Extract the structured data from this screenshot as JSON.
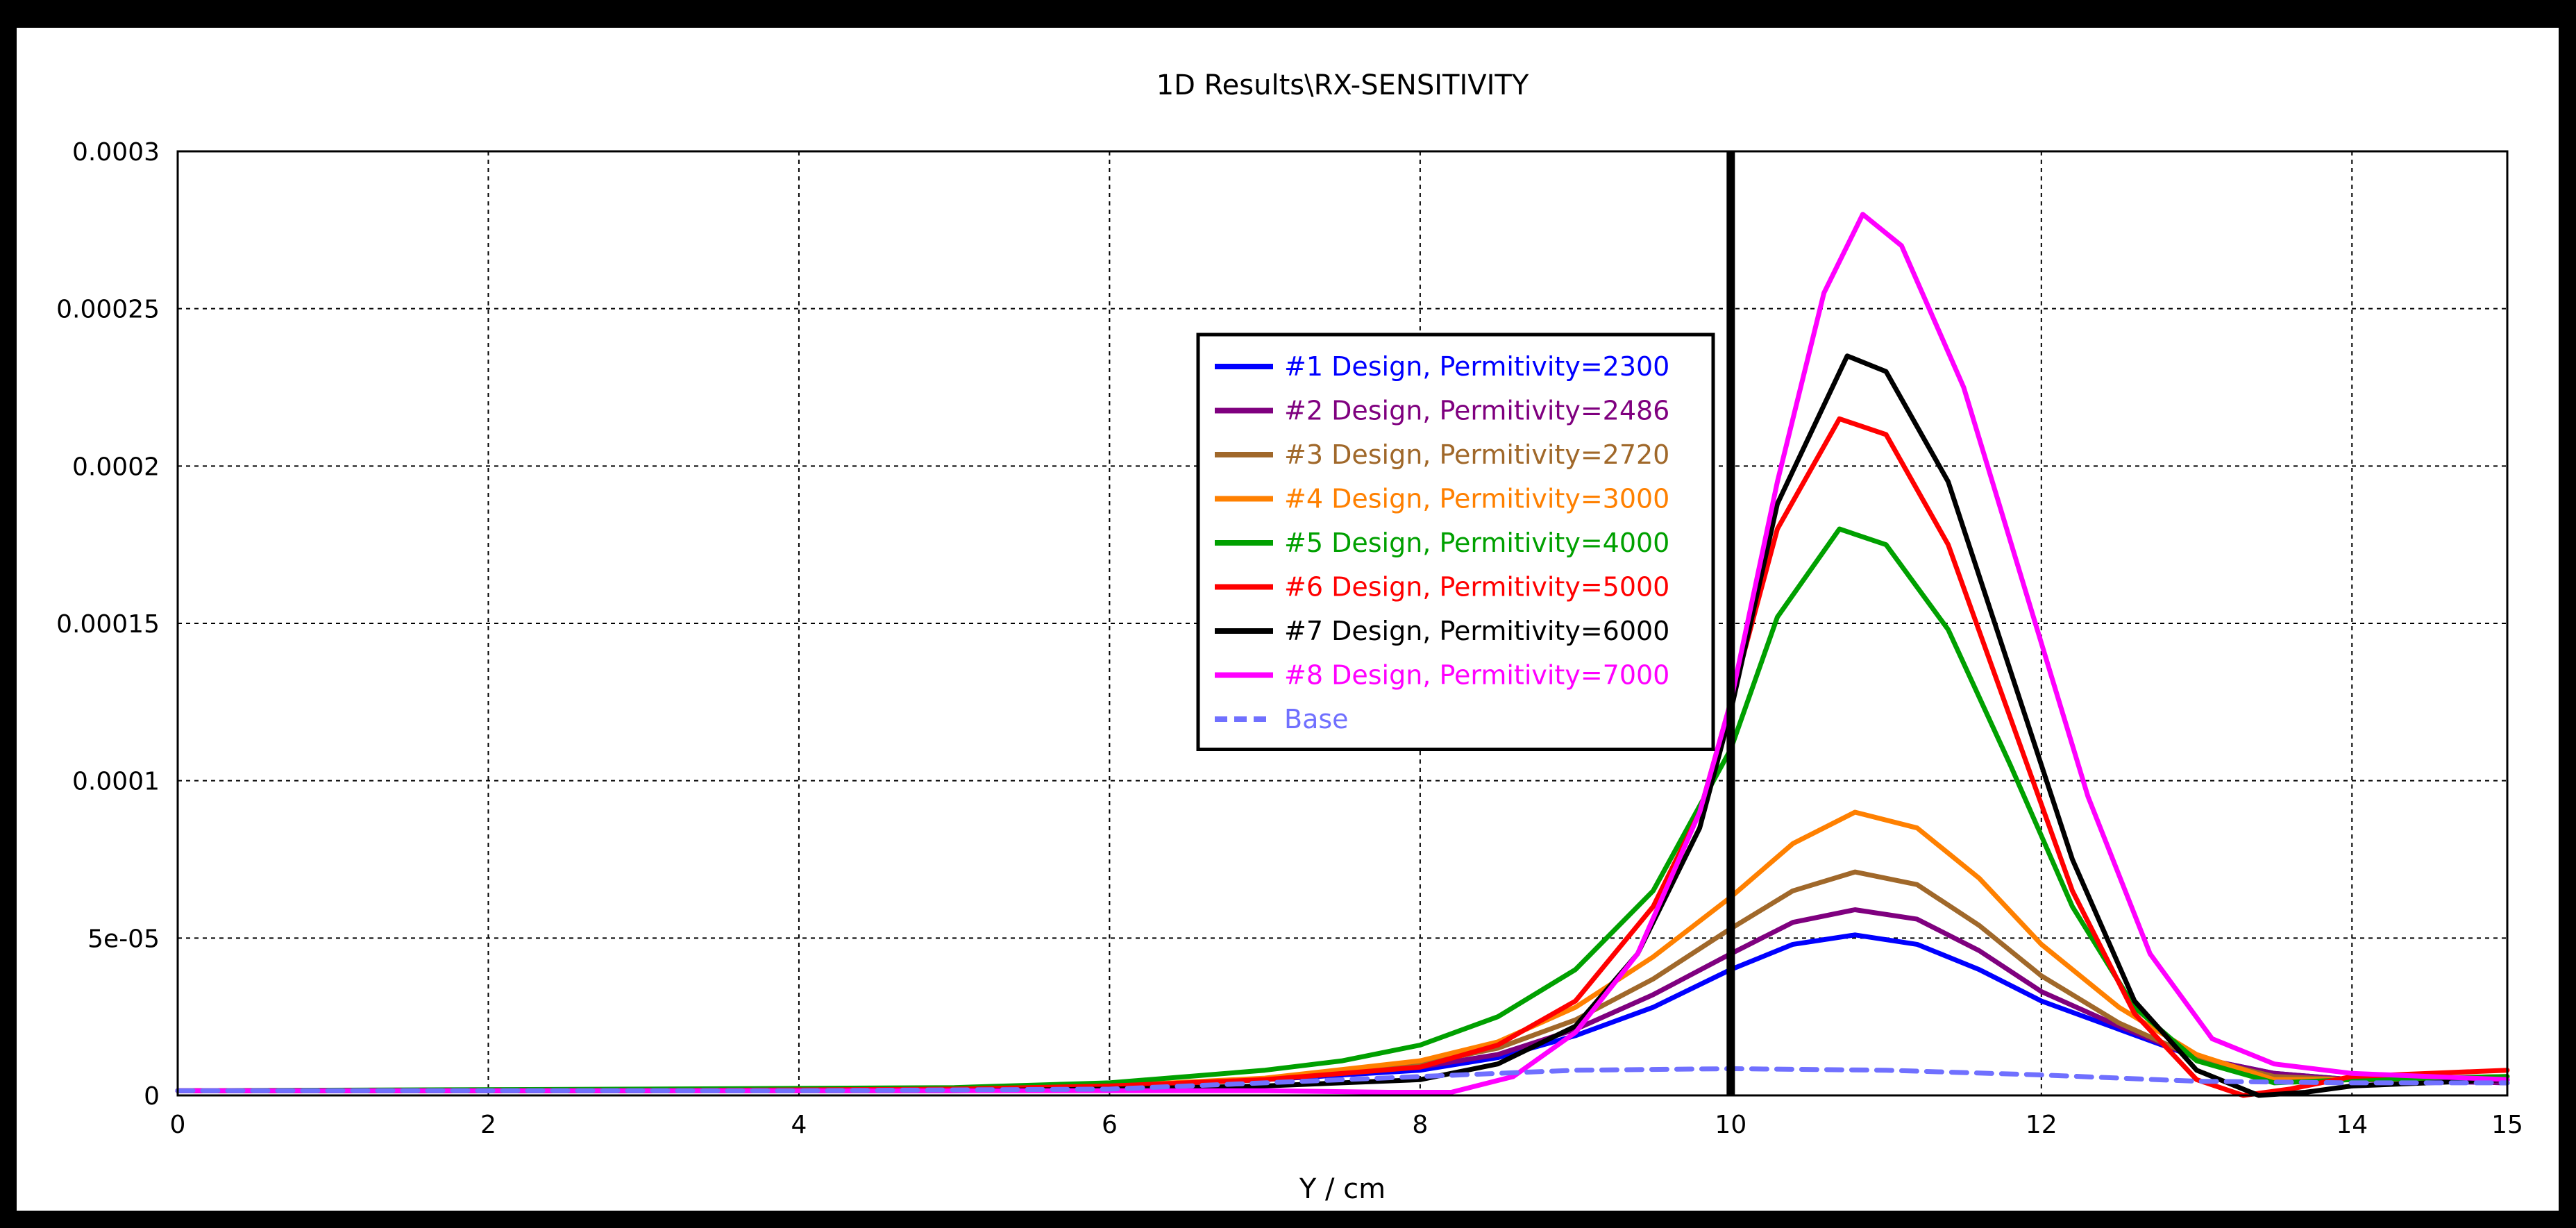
{
  "chart_data": {
    "type": "line",
    "title": "1D Results\\RX-SENSITIVITY",
    "xlabel": "Y / cm",
    "ylabel": "",
    "xlim": [
      0,
      15
    ],
    "ylim": [
      0,
      0.0003
    ],
    "x_ticks": [
      "0",
      "2",
      "4",
      "6",
      "8",
      "10",
      "12",
      "14",
      "15"
    ],
    "y_ticks": [
      "0",
      "5e-05",
      "0.0001",
      "0.00015",
      "0.0002",
      "0.00025",
      "0.0003"
    ],
    "grid": true,
    "legend_position": "top-center",
    "marker_line_x": 10,
    "series": [
      {
        "name": "#1 Design, Permitivity=2300",
        "color": "#0000ff",
        "dash": false,
        "points": [
          [
            0,
            1.5e-06
          ],
          [
            3,
            1.5e-06
          ],
          [
            5,
            2e-06
          ],
          [
            6,
            3e-06
          ],
          [
            7,
            5e-06
          ],
          [
            8,
            8e-06
          ],
          [
            8.5,
            1.2e-05
          ],
          [
            9,
            1.9e-05
          ],
          [
            9.5,
            2.8e-05
          ],
          [
            10,
            4e-05
          ],
          [
            10.4,
            4.8e-05
          ],
          [
            10.8,
            5.1e-05
          ],
          [
            11.2,
            4.8e-05
          ],
          [
            11.6,
            4e-05
          ],
          [
            12,
            3e-05
          ],
          [
            12.5,
            2.1e-05
          ],
          [
            13,
            1.2e-05
          ],
          [
            13.5,
            7e-06
          ],
          [
            14,
            5e-06
          ],
          [
            15,
            4e-06
          ]
        ]
      },
      {
        "name": "#2 Design, Permitivity=2486",
        "color": "#7f007f",
        "dash": false,
        "points": [
          [
            0,
            1.5e-06
          ],
          [
            3,
            1.5e-06
          ],
          [
            5,
            2e-06
          ],
          [
            6,
            3e-06
          ],
          [
            7,
            5e-06
          ],
          [
            8,
            9e-06
          ],
          [
            8.5,
            1.3e-05
          ],
          [
            9,
            2.1e-05
          ],
          [
            9.5,
            3.2e-05
          ],
          [
            10,
            4.5e-05
          ],
          [
            10.4,
            5.5e-05
          ],
          [
            10.8,
            5.9e-05
          ],
          [
            11.2,
            5.6e-05
          ],
          [
            11.6,
            4.6e-05
          ],
          [
            12,
            3.3e-05
          ],
          [
            12.5,
            2.2e-05
          ],
          [
            13,
            1.2e-05
          ],
          [
            13.5,
            7e-06
          ],
          [
            14,
            5e-06
          ],
          [
            15,
            4e-06
          ]
        ]
      },
      {
        "name": "#3 Design, Permitivity=2720",
        "color": "#a0682a",
        "dash": false,
        "points": [
          [
            0,
            1.5e-06
          ],
          [
            3,
            1.5e-06
          ],
          [
            5,
            2e-06
          ],
          [
            6,
            3e-06
          ],
          [
            7,
            5e-06
          ],
          [
            8,
            1e-05
          ],
          [
            8.5,
            1.5e-05
          ],
          [
            9,
            2.4e-05
          ],
          [
            9.5,
            3.7e-05
          ],
          [
            10,
            5.3e-05
          ],
          [
            10.4,
            6.5e-05
          ],
          [
            10.8,
            7.1e-05
          ],
          [
            11.2,
            6.7e-05
          ],
          [
            11.6,
            5.4e-05
          ],
          [
            12,
            3.8e-05
          ],
          [
            12.5,
            2.3e-05
          ],
          [
            13,
            1.2e-05
          ],
          [
            13.5,
            6e-06
          ],
          [
            14,
            5e-06
          ],
          [
            15,
            5e-06
          ]
        ]
      },
      {
        "name": "#4 Design, Permitivity=3000",
        "color": "#ff8000",
        "dash": false,
        "points": [
          [
            0,
            1.5e-06
          ],
          [
            3,
            1.5e-06
          ],
          [
            5,
            2e-06
          ],
          [
            6,
            3e-06
          ],
          [
            7,
            5.5e-06
          ],
          [
            8,
            1.1e-05
          ],
          [
            8.5,
            1.7e-05
          ],
          [
            9,
            2.8e-05
          ],
          [
            9.5,
            4.4e-05
          ],
          [
            10,
            6.3e-05
          ],
          [
            10.4,
            8e-05
          ],
          [
            10.8,
            9e-05
          ],
          [
            11.2,
            8.5e-05
          ],
          [
            11.6,
            6.9e-05
          ],
          [
            12,
            4.8e-05
          ],
          [
            12.5,
            2.8e-05
          ],
          [
            13,
            1.3e-05
          ],
          [
            13.5,
            5e-06
          ],
          [
            14,
            5e-06
          ],
          [
            15,
            6e-06
          ]
        ]
      },
      {
        "name": "#5 Design, Permitivity=4000",
        "color": "#00a000",
        "dash": false,
        "points": [
          [
            0,
            1.5e-06
          ],
          [
            3,
            2e-06
          ],
          [
            5,
            2.5e-06
          ],
          [
            6,
            4e-06
          ],
          [
            7,
            8e-06
          ],
          [
            7.5,
            1.1e-05
          ],
          [
            8,
            1.6e-05
          ],
          [
            8.5,
            2.5e-05
          ],
          [
            9,
            4e-05
          ],
          [
            9.5,
            6.5e-05
          ],
          [
            10,
            0.00011
          ],
          [
            10.3,
            0.000152
          ],
          [
            10.7,
            0.00018
          ],
          [
            11,
            0.000175
          ],
          [
            11.4,
            0.000148
          ],
          [
            11.8,
            0.000105
          ],
          [
            12.2,
            6e-05
          ],
          [
            12.6,
            2.8e-05
          ],
          [
            13,
            1.1e-05
          ],
          [
            13.5,
            4e-06
          ],
          [
            14,
            5e-06
          ],
          [
            15,
            6e-06
          ]
        ]
      },
      {
        "name": "#6 Design, Permitivity=5000",
        "color": "#ff0000",
        "dash": false,
        "points": [
          [
            0,
            1.5e-06
          ],
          [
            3,
            1.5e-06
          ],
          [
            5,
            2e-06
          ],
          [
            6,
            3e-06
          ],
          [
            7,
            5e-06
          ],
          [
            8,
            9e-06
          ],
          [
            8.5,
            1.6e-05
          ],
          [
            9,
            3e-05
          ],
          [
            9.5,
            6e-05
          ],
          [
            9.8,
            9e-05
          ],
          [
            10,
            0.000125
          ],
          [
            10.3,
            0.00018
          ],
          [
            10.7,
            0.000215
          ],
          [
            11,
            0.00021
          ],
          [
            11.4,
            0.000175
          ],
          [
            11.8,
            0.00012
          ],
          [
            12.2,
            6.5e-05
          ],
          [
            12.6,
            2.6e-05
          ],
          [
            13,
            5e-06
          ],
          [
            13.3,
            0
          ],
          [
            13.6,
            2e-06
          ],
          [
            14,
            6e-06
          ],
          [
            15,
            8e-06
          ]
        ]
      },
      {
        "name": "#7 Design, Permitivity=6000",
        "color": "#000000",
        "dash": false,
        "points": [
          [
            0,
            1.5e-06
          ],
          [
            3,
            1.5e-06
          ],
          [
            5,
            1.5e-06
          ],
          [
            6,
            2e-06
          ],
          [
            7,
            3e-06
          ],
          [
            8,
            5e-06
          ],
          [
            8.5,
            1e-05
          ],
          [
            9,
            2.2e-05
          ],
          [
            9.4,
            4.5e-05
          ],
          [
            9.8,
            8.5e-05
          ],
          [
            10,
            0.000122
          ],
          [
            10.3,
            0.000188
          ],
          [
            10.75,
            0.000235
          ],
          [
            11,
            0.00023
          ],
          [
            11.4,
            0.000195
          ],
          [
            11.8,
            0.000135
          ],
          [
            12.2,
            7.5e-05
          ],
          [
            12.6,
            3e-05
          ],
          [
            13,
            8e-06
          ],
          [
            13.4,
            0
          ],
          [
            13.7,
            1e-06
          ],
          [
            14,
            3e-06
          ],
          [
            15,
            5e-06
          ]
        ]
      },
      {
        "name": "#8 Design, Permitivity=7000",
        "color": "#ff00ff",
        "dash": false,
        "points": [
          [
            0,
            1.5e-06
          ],
          [
            3,
            1.5e-06
          ],
          [
            5,
            1.5e-06
          ],
          [
            6,
            1.5e-06
          ],
          [
            7,
            1.5e-06
          ],
          [
            7.8,
            1e-06
          ],
          [
            8.2,
            1e-06
          ],
          [
            8.6,
            6e-06
          ],
          [
            9,
            2e-05
          ],
          [
            9.4,
            4.5e-05
          ],
          [
            9.8,
            9e-05
          ],
          [
            10,
            0.000125
          ],
          [
            10.3,
            0.000195
          ],
          [
            10.6,
            0.000255
          ],
          [
            10.85,
            0.00028
          ],
          [
            11.1,
            0.00027
          ],
          [
            11.5,
            0.000225
          ],
          [
            11.9,
            0.00016
          ],
          [
            12.3,
            9.5e-05
          ],
          [
            12.7,
            4.5e-05
          ],
          [
            13.1,
            1.8e-05
          ],
          [
            13.5,
            1e-05
          ],
          [
            14,
            7e-06
          ],
          [
            15,
            5e-06
          ]
        ]
      },
      {
        "name": "Base",
        "color": "#7070ff",
        "dash": true,
        "points": [
          [
            0,
            1.5e-06
          ],
          [
            2,
            1.5e-06
          ],
          [
            4,
            1.5e-06
          ],
          [
            6,
            2e-06
          ],
          [
            7,
            4e-06
          ],
          [
            8,
            6e-06
          ],
          [
            9,
            8e-06
          ],
          [
            10,
            8.5e-06
          ],
          [
            11,
            8e-06
          ],
          [
            12,
            6.5e-06
          ],
          [
            13,
            4.5e-06
          ],
          [
            14,
            4e-06
          ],
          [
            15,
            4e-06
          ]
        ]
      }
    ]
  }
}
